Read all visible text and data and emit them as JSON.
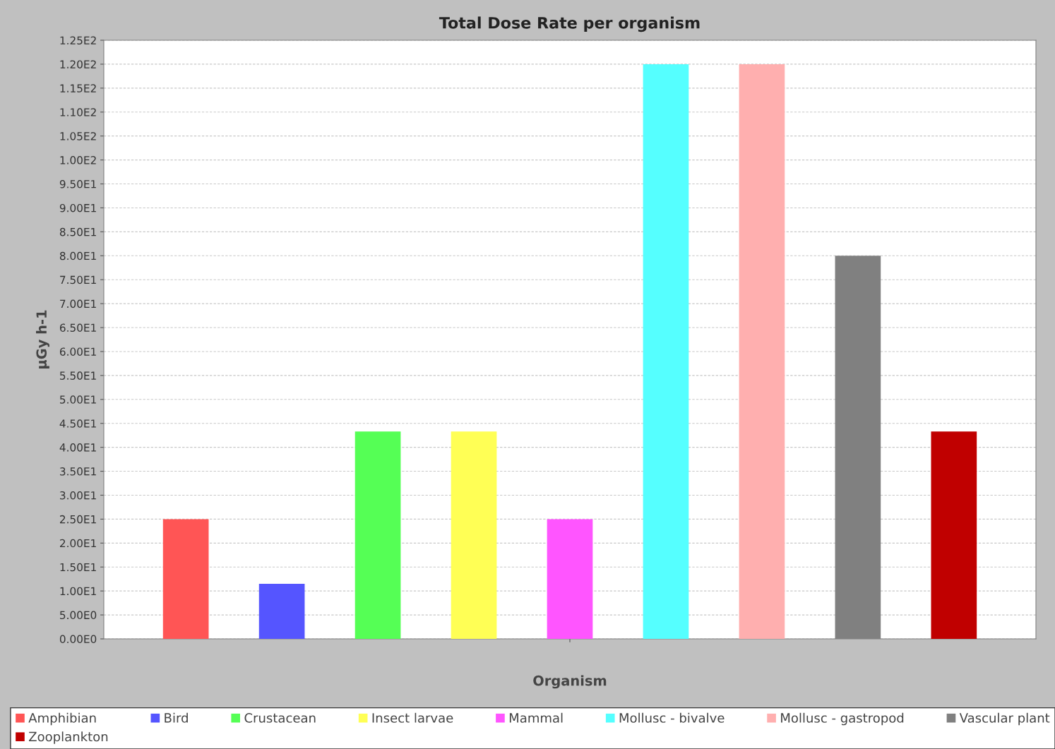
{
  "chart_data": {
    "type": "bar",
    "title": "Total Dose Rate per organism",
    "xlabel": "Organism",
    "ylabel": "µGy h-1",
    "categories": [
      null
    ],
    "series": [
      {
        "name": "Amphibian",
        "color": "#ff5555",
        "values": [
          25
        ]
      },
      {
        "name": "Bird",
        "color": "#5555ff",
        "values": [
          11.5
        ]
      },
      {
        "name": "Crustacean",
        "color": "#55ff55",
        "values": [
          43.3
        ]
      },
      {
        "name": "Insect larvae",
        "color": "#ffff55",
        "values": [
          43.3
        ]
      },
      {
        "name": "Mammal",
        "color": "#ff55ff",
        "values": [
          25
        ]
      },
      {
        "name": "Mollusc - bivalve",
        "color": "#55ffff",
        "values": [
          120
        ]
      },
      {
        "name": "Mollusc - gastropod",
        "color": "#ffafaf",
        "values": [
          120
        ]
      },
      {
        "name": "Vascular plant",
        "color": "#808080",
        "values": [
          80
        ]
      },
      {
        "name": "Zooplankton",
        "color": "#c00000",
        "values": [
          43.3
        ]
      }
    ],
    "ylim": [
      0,
      125
    ],
    "yticks": [
      {
        "value": 0,
        "label": "0.00E0"
      },
      {
        "value": 5,
        "label": "5.00E0"
      },
      {
        "value": 10,
        "label": "1.00E1"
      },
      {
        "value": 15,
        "label": "1.50E1"
      },
      {
        "value": 20,
        "label": "2.00E1"
      },
      {
        "value": 25,
        "label": "2.50E1"
      },
      {
        "value": 30,
        "label": "3.00E1"
      },
      {
        "value": 35,
        "label": "3.50E1"
      },
      {
        "value": 40,
        "label": "4.00E1"
      },
      {
        "value": 45,
        "label": "4.50E1"
      },
      {
        "value": 50,
        "label": "5.00E1"
      },
      {
        "value": 55,
        "label": "5.50E1"
      },
      {
        "value": 60,
        "label": "6.00E1"
      },
      {
        "value": 65,
        "label": "6.50E1"
      },
      {
        "value": 70,
        "label": "7.00E1"
      },
      {
        "value": 75,
        "label": "7.50E1"
      },
      {
        "value": 80,
        "label": "8.00E1"
      },
      {
        "value": 85,
        "label": "8.50E1"
      },
      {
        "value": 90,
        "label": "9.00E1"
      },
      {
        "value": 95,
        "label": "9.50E1"
      },
      {
        "value": 100,
        "label": "1.00E2"
      },
      {
        "value": 105,
        "label": "1.05E2"
      },
      {
        "value": 110,
        "label": "1.10E2"
      },
      {
        "value": 115,
        "label": "1.15E2"
      },
      {
        "value": 120,
        "label": "1.20E2"
      },
      {
        "value": 125,
        "label": "1.25E2"
      }
    ],
    "grid": "y",
    "legend": "bottom"
  }
}
